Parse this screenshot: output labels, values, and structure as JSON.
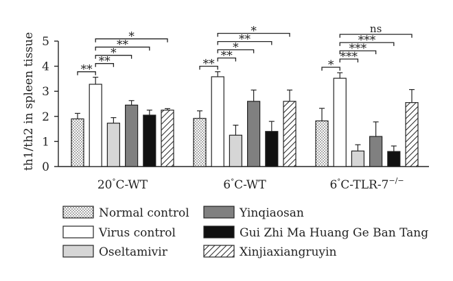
{
  "chart_data": {
    "type": "bar",
    "ylabel": "th1/th2 in spleen tissue",
    "ylim": [
      0,
      5
    ],
    "yticks": [
      "0",
      "1",
      "2",
      "3",
      "4",
      "5"
    ],
    "legend_placement": "bottom",
    "groups": [
      {
        "label_main": "20",
        "label_rest": "C-WT",
        "label_sup": "",
        "values": [
          1.9,
          3.28,
          1.73,
          2.45,
          2.05,
          2.25
        ],
        "errors": [
          0.22,
          0.28,
          0.22,
          0.18,
          0.2,
          0.06
        ],
        "sig": [
          {
            "from": 0,
            "to": 1,
            "label": "**"
          },
          {
            "from": 1,
            "to": 2,
            "label": "**"
          },
          {
            "from": 1,
            "to": 3,
            "label": "*"
          },
          {
            "from": 1,
            "to": 4,
            "label": "**"
          },
          {
            "from": 1,
            "to": 5,
            "label": "*"
          }
        ]
      },
      {
        "label_main": "6",
        "label_rest": "C-WT",
        "label_sup": "",
        "values": [
          1.92,
          3.58,
          1.25,
          2.6,
          1.4,
          2.6
        ],
        "errors": [
          0.3,
          0.2,
          0.4,
          0.45,
          0.4,
          0.45
        ],
        "sig": [
          {
            "from": 0,
            "to": 1,
            "label": "**"
          },
          {
            "from": 1,
            "to": 2,
            "label": "**"
          },
          {
            "from": 1,
            "to": 3,
            "label": "*"
          },
          {
            "from": 1,
            "to": 4,
            "label": "**"
          },
          {
            "from": 1,
            "to": 5,
            "label": "*"
          }
        ]
      },
      {
        "label_main": "6",
        "label_rest": "C-TLR-7",
        "label_sup": "−/−",
        "values": [
          1.82,
          3.52,
          0.62,
          1.2,
          0.6,
          2.55
        ],
        "errors": [
          0.5,
          0.22,
          0.25,
          0.58,
          0.22,
          0.52
        ],
        "sig": [
          {
            "from": 0,
            "to": 1,
            "label": "*"
          },
          {
            "from": 1,
            "to": 2,
            "label": "***"
          },
          {
            "from": 1,
            "to": 3,
            "label": "***"
          },
          {
            "from": 1,
            "to": 4,
            "label": "***"
          },
          {
            "from": 1,
            "to": 5,
            "label": "ns"
          }
        ]
      }
    ],
    "series": [
      {
        "name": "Normal control",
        "fill": "dots",
        "color": "#ffffff"
      },
      {
        "name": "Virus control",
        "fill": "solid",
        "color": "#ffffff"
      },
      {
        "name": "Oseltamivir",
        "fill": "solid",
        "color": "#d6d6d6"
      },
      {
        "name": "Yinqiaosan",
        "fill": "solid",
        "color": "#808080"
      },
      {
        "name": "Gui Zhi Ma Huang Ge Ban Tang",
        "fill": "solid",
        "color": "#111111"
      },
      {
        "name": "Xinjiaxiangruyin",
        "fill": "hatch",
        "color": "#ffffff"
      }
    ]
  }
}
